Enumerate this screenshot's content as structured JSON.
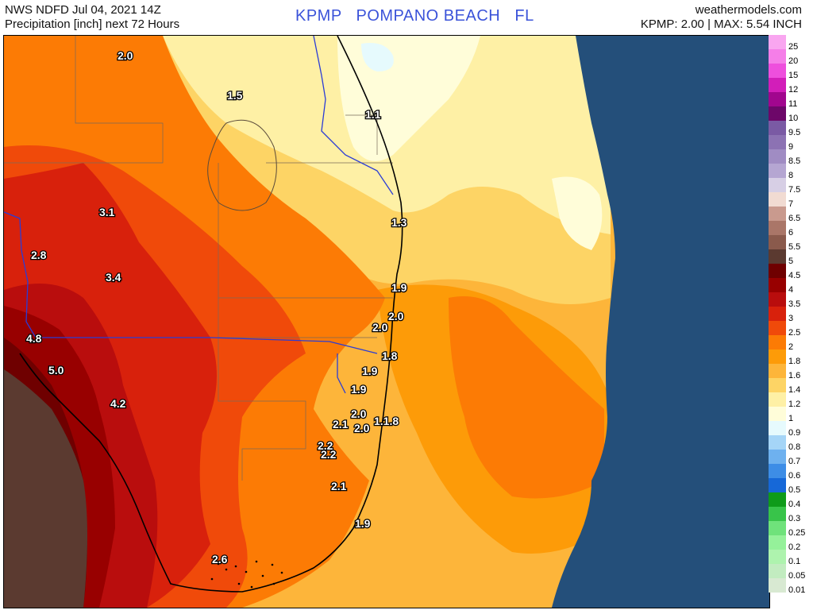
{
  "header": {
    "line1": "NWS NDFD Jul 04, 2021 14Z",
    "line2": "Precipitation [inch] next 72 Hours",
    "station_title": "KPMP   POMPANO BEACH   FL",
    "site": "weathermodels.com",
    "summary": "KPMP: 2.00 | MAX: 5.54 INCH"
  },
  "legend": [
    {
      "label": "25",
      "color": "#f9a6f0"
    },
    {
      "label": "20",
      "color": "#f57ee8"
    },
    {
      "label": "15",
      "color": "#ee4fdd"
    },
    {
      "label": "12",
      "color": "#d21eb9"
    },
    {
      "label": "11",
      "color": "#a1068e"
    },
    {
      "label": "10",
      "color": "#6d0769"
    },
    {
      "label": "9.5",
      "color": "#7a5aa4"
    },
    {
      "label": "9",
      "color": "#8c72b3"
    },
    {
      "label": "8.5",
      "color": "#a08cc3"
    },
    {
      "label": "8",
      "color": "#b5a6d2"
    },
    {
      "label": "7.5",
      "color": "#d7cfe5"
    },
    {
      "label": "7",
      "color": "#f1dbd2"
    },
    {
      "label": "6.5",
      "color": "#c99a8e"
    },
    {
      "label": "6",
      "color": "#aa7668"
    },
    {
      "label": "5.5",
      "color": "#8a5a4c"
    },
    {
      "label": "5",
      "color": "#5b3a30"
    },
    {
      "label": "4.5",
      "color": "#6f0000"
    },
    {
      "label": "4",
      "color": "#980000"
    },
    {
      "label": "3.5",
      "color": "#b90d0d"
    },
    {
      "label": "3",
      "color": "#d8210c"
    },
    {
      "label": "2.5",
      "color": "#f04a0a"
    },
    {
      "label": "2",
      "color": "#fc7b05"
    },
    {
      "label": "1.8",
      "color": "#fd9b08"
    },
    {
      "label": "1.6",
      "color": "#fdb53a"
    },
    {
      "label": "1.4",
      "color": "#fdd465"
    },
    {
      "label": "1.2",
      "color": "#fef0a5"
    },
    {
      "label": "1",
      "color": "#fffdd9"
    },
    {
      "label": "0.9",
      "color": "#e6fafd"
    },
    {
      "label": "0.8",
      "color": "#a5d5f7"
    },
    {
      "label": "0.7",
      "color": "#6eb1ef"
    },
    {
      "label": "0.6",
      "color": "#3d8de6"
    },
    {
      "label": "0.5",
      "color": "#1668d8"
    },
    {
      "label": "0.4",
      "color": "#0e9b1a"
    },
    {
      "label": "0.3",
      "color": "#38c44a"
    },
    {
      "label": "0.25",
      "color": "#6fe27b"
    },
    {
      "label": "0.2",
      "color": "#95f19a"
    },
    {
      "label": "0.1",
      "color": "#aef3ae"
    },
    {
      "label": "0.05",
      "color": "#c2ecc0"
    },
    {
      "label": "0.01",
      "color": "#d8e9d2"
    }
  ],
  "map_labels": [
    {
      "text": "2.0"
    },
    {
      "text": "1.5"
    },
    {
      "text": "1.1"
    },
    {
      "text": "3.1"
    },
    {
      "text": "1.3"
    },
    {
      "text": "2.8"
    },
    {
      "text": "3.4"
    },
    {
      "text": "1.9"
    },
    {
      "text": "2.0"
    },
    {
      "text": "2.0"
    },
    {
      "text": "4.8"
    },
    {
      "text": "1.8"
    },
    {
      "text": "5.0"
    },
    {
      "text": "1.9"
    },
    {
      "text": "1.9"
    },
    {
      "text": "4.2"
    },
    {
      "text": "2.0"
    },
    {
      "text": "2.1"
    },
    {
      "text": "1.1.8"
    },
    {
      "text": "2.0"
    },
    {
      "text": "2.2"
    },
    {
      "text": "2.2"
    },
    {
      "text": "2.1"
    },
    {
      "text": "1.9"
    },
    {
      "text": "2.6"
    }
  ],
  "colors": {
    "ocean": "#244f7a",
    "title_blue": "#3b53d9",
    "river": "#2a3cd6"
  }
}
